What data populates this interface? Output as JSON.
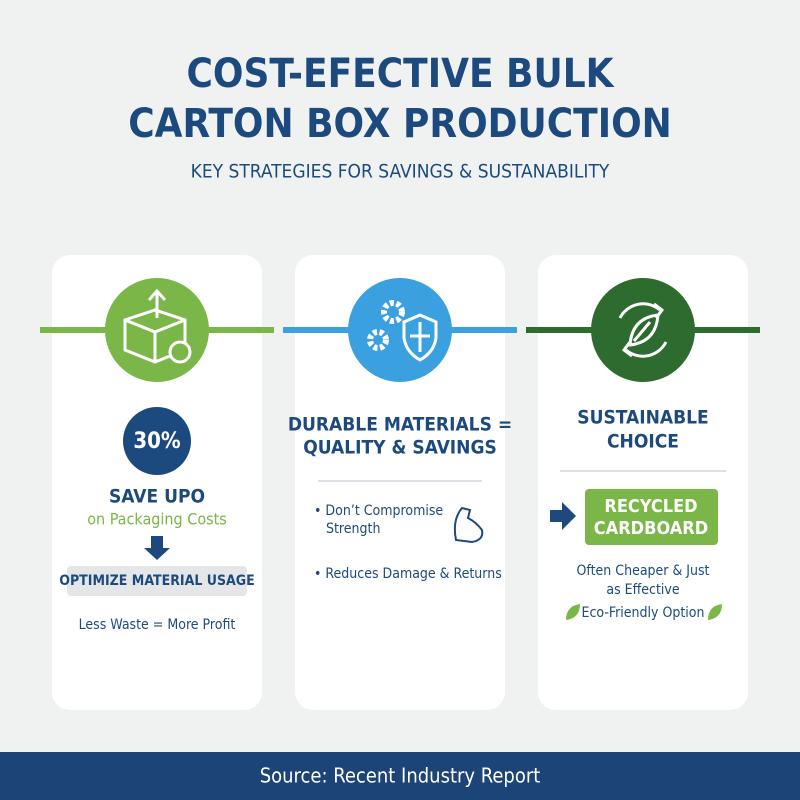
{
  "header": {
    "title": [
      "COST-EFECTIVE BULK",
      "CARTON BOX PRODUCTION"
    ],
    "subtitle": "KEY STRATEGIES FOR SAVINGS & SUSTANABILITY"
  },
  "cards": [
    {
      "badge": "30%",
      "heading": "SAVE UPO",
      "subheading": "on Packaging Costs",
      "pill": "OPTIMIZE MATERIAL USAGE",
      "note": "Less Waste = More Profit"
    },
    {
      "heading": [
        "DURABLE MATERIALS =",
        "QUALITY & SAVINGS"
      ],
      "bullets": [
        [
          "• Don’t Compromise",
          "Strength"
        ],
        [
          "• Reduces Damage & Returns"
        ]
      ]
    },
    {
      "heading": [
        "SUSTAINABLE",
        "CHOICE"
      ],
      "highlight": [
        "RECYCLED",
        "CARDBOARD"
      ],
      "note": [
        "Often Cheaper & Just",
        "as Effective"
      ],
      "tag": "Eco-Friendly Option"
    }
  ],
  "footer": {
    "source": "Source: Recent Industry Report"
  }
}
